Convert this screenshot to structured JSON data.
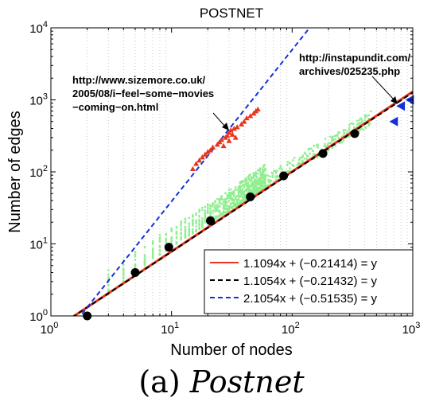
{
  "chart_data": {
    "type": "scatter",
    "title": "POSTNET",
    "xlabel": "Number of nodes",
    "ylabel": "Number of edges",
    "xscale": "log",
    "yscale": "log",
    "xlim": [
      1,
      1000
    ],
    "ylim": [
      1,
      10000
    ],
    "x_ticks": [
      {
        "base": "10",
        "exp": "0"
      },
      {
        "base": "10",
        "exp": "1"
      },
      {
        "base": "10",
        "exp": "2"
      },
      {
        "base": "10",
        "exp": "3"
      }
    ],
    "y_ticks": [
      {
        "base": "10",
        "exp": "0"
      },
      {
        "base": "10",
        "exp": "1"
      },
      {
        "base": "10",
        "exp": "2"
      },
      {
        "base": "10",
        "exp": "3"
      },
      {
        "base": "10",
        "exp": "4"
      }
    ],
    "grid": "dotted vertical",
    "legend_position": "bottom-right",
    "fit_lines": [
      {
        "label": "1.1094x + (−0.21414) = y",
        "slope": 1.1094,
        "intercept": -0.21414,
        "color": "#e8351c",
        "style": "solid"
      },
      {
        "label": "1.1054x + (−0.21432) = y",
        "slope": 1.1054,
        "intercept": -0.21432,
        "color": "#000000",
        "style": "dashed"
      },
      {
        "label": "2.1054x + (−0.51535) = y",
        "slope": 2.1054,
        "intercept": -0.51535,
        "color": "#1530d8",
        "style": "dashed"
      }
    ],
    "binned_means": {
      "color": "#000000",
      "points": [
        [
          2,
          1
        ],
        [
          5,
          4
        ],
        [
          9.5,
          9
        ],
        [
          21,
          21
        ],
        [
          45,
          45
        ],
        [
          85,
          88
        ],
        [
          180,
          180
        ],
        [
          330,
          340
        ]
      ]
    },
    "raw_points_color": "#90ee90",
    "outlier_triangles_red": {
      "color": "#e8351c",
      "points": [
        [
          15,
          110
        ],
        [
          16,
          130
        ],
        [
          17,
          145
        ],
        [
          18,
          160
        ],
        [
          19,
          175
        ],
        [
          20,
          190
        ],
        [
          21,
          200
        ],
        [
          22,
          220
        ],
        [
          24,
          240
        ],
        [
          25,
          260
        ],
        [
          26,
          280
        ],
        [
          28,
          300
        ],
        [
          29,
          320
        ],
        [
          30,
          350
        ],
        [
          31,
          380
        ],
        [
          32,
          330
        ],
        [
          33,
          400
        ],
        [
          35,
          420
        ],
        [
          38,
          460
        ],
        [
          40,
          500
        ],
        [
          42,
          560
        ],
        [
          45,
          600
        ],
        [
          48,
          650
        ],
        [
          50,
          700
        ],
        [
          52,
          740
        ],
        [
          30,
          270
        ],
        [
          34,
          300
        ],
        [
          27,
          230
        ]
      ]
    },
    "outlier_triangles_blue": {
      "color": "#1530d8",
      "points": [
        [
          700,
          500
        ],
        [
          800,
          820
        ],
        [
          950,
          1000
        ]
      ]
    },
    "annotations": [
      {
        "lines": [
          "http://www.sizemore.co.uk/",
          "2005/08/i−feel−some−movies",
          "−coming−on.html"
        ]
      },
      {
        "lines": [
          "http://instapundit.com/",
          "archives/025235.php"
        ]
      }
    ]
  },
  "caption": {
    "prefix": "(a) ",
    "name": "Postnet"
  }
}
